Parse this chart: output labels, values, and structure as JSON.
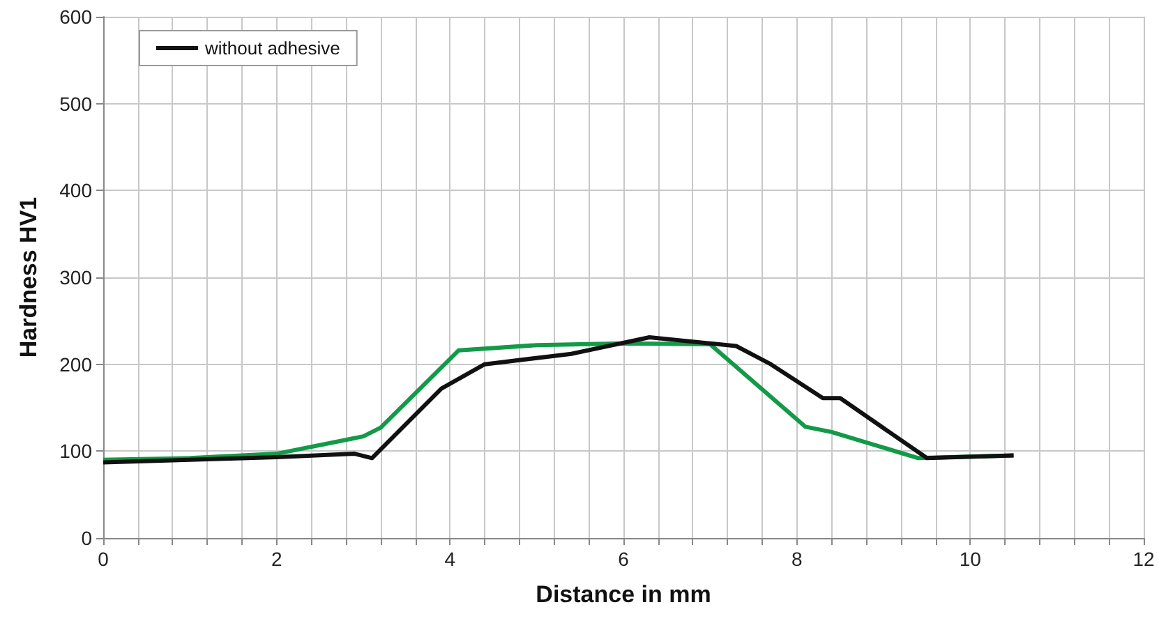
{
  "chart_data": {
    "type": "line",
    "xlabel": "Distance in mm",
    "ylabel": "Hardness HV1",
    "xlim": [
      0,
      12
    ],
    "ylim": [
      0,
      600
    ],
    "xticks": [
      0,
      {
        "value": 0.4,
        "label": null
      },
      {
        "value": 0.8,
        "label": null
      },
      {
        "value": 1.2,
        "label": null
      },
      {
        "value": 1.6,
        "label": null
      },
      2,
      {
        "value": 2.4,
        "label": null
      },
      {
        "value": 2.8,
        "label": null
      },
      {
        "value": 3.2,
        "label": null
      },
      {
        "value": 3.6,
        "label": null
      },
      4,
      {
        "value": 4.4,
        "label": null
      },
      {
        "value": 4.8,
        "label": null
      },
      {
        "value": 5.2,
        "label": null
      },
      {
        "value": 5.6,
        "label": null
      },
      6,
      {
        "value": 6.4,
        "label": null
      },
      {
        "value": 6.8,
        "label": null
      },
      {
        "value": 7.2,
        "label": null
      },
      {
        "value": 7.6,
        "label": null
      },
      8,
      {
        "value": 8.4,
        "label": null
      },
      {
        "value": 8.8,
        "label": null
      },
      {
        "value": 9.2,
        "label": null
      },
      {
        "value": 9.6,
        "label": null
      },
      10,
      {
        "value": 10.4,
        "label": null
      },
      {
        "value": 10.8,
        "label": null
      },
      {
        "value": 11.2,
        "label": null
      },
      {
        "value": 11.6,
        "label": null
      },
      12
    ],
    "yticks": [
      0,
      100,
      200,
      300,
      400,
      500,
      600
    ],
    "grid": true,
    "legend": "top left",
    "marker": "none",
    "line_style": "solid",
    "series": [
      {
        "color": "#139a48",
        "x": [
          0,
          1,
          2,
          3,
          3.2,
          4.1,
          5,
          6,
          7,
          8.1,
          8.4,
          9.4,
          10.5
        ],
        "values": [
          90,
          92,
          97,
          117,
          127,
          216,
          222,
          224,
          223,
          128,
          122,
          92,
          95
        ]
      },
      {
        "name": "without adhesive",
        "color": "#111111",
        "x": [
          0,
          1,
          2,
          2.9,
          3.1,
          3.9,
          4.4,
          5.4,
          6.3,
          7.3,
          7.7,
          8.3,
          8.5,
          9.5,
          10.5
        ],
        "values": [
          87,
          90,
          93,
          97,
          92,
          172,
          200,
          212,
          231,
          221,
          200,
          161,
          161,
          92,
          95
        ]
      }
    ]
  }
}
